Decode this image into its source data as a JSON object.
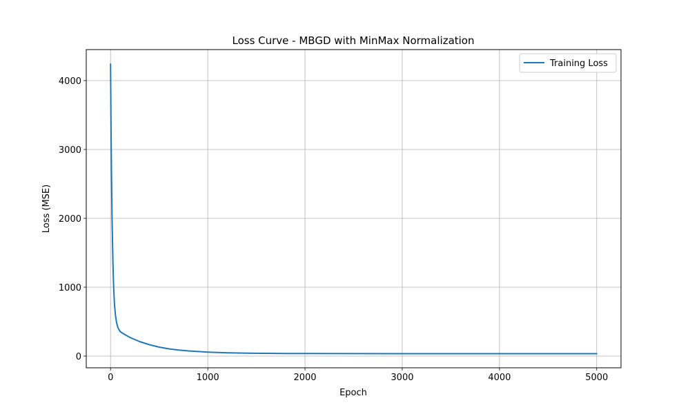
{
  "chart_data": {
    "type": "line",
    "title": "Loss Curve - MBGD with MinMax Normalization",
    "xlabel": "Epoch",
    "ylabel": "Loss (MSE)",
    "xlim": [
      -250,
      5250
    ],
    "ylim": [
      -170,
      4450
    ],
    "x_ticks": [
      0,
      1000,
      2000,
      3000,
      4000,
      5000
    ],
    "y_ticks": [
      0,
      1000,
      2000,
      3000,
      4000
    ],
    "x_tick_labels": [
      "0",
      "1000",
      "2000",
      "3000",
      "4000",
      "5000"
    ],
    "y_tick_labels": [
      "0",
      "1000",
      "2000",
      "3000",
      "4000"
    ],
    "grid": true,
    "legend_position": "top-right",
    "series": [
      {
        "name": "Training Loss",
        "color": "#1f77b4",
        "x": [
          0,
          5,
          10,
          15,
          20,
          25,
          30,
          35,
          40,
          50,
          60,
          70,
          80,
          90,
          100,
          120,
          150,
          200,
          300,
          400,
          500,
          600,
          700,
          800,
          900,
          1000,
          1200,
          1400,
          1600,
          1800,
          2000,
          2500,
          3000,
          3500,
          4000,
          4500,
          5000
        ],
        "y": [
          4240,
          3300,
          2600,
          2050,
          1650,
          1330,
          1080,
          900,
          760,
          600,
          500,
          440,
          400,
          375,
          355,
          335,
          310,
          270,
          210,
          165,
          130,
          105,
          88,
          75,
          66,
          58,
          48,
          43,
          40,
          38,
          37,
          36,
          35,
          35,
          35,
          35,
          35
        ]
      }
    ]
  }
}
